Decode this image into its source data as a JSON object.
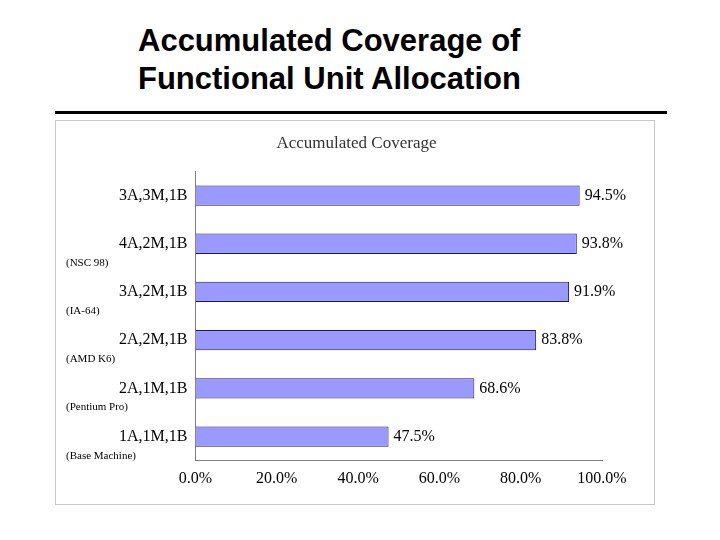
{
  "slide_title": "Accumulated Coverage of Functional Unit Allocation",
  "chart_data": {
    "type": "bar",
    "orientation": "horizontal",
    "title": "Accumulated Coverage",
    "categories": [
      "3A,3M,1B",
      "4A,2M,1B",
      "3A,2M,1B",
      "2A,2M,1B",
      "2A,1M,1B",
      "1A,1M,1B"
    ],
    "values": [
      94.5,
      93.8,
      91.9,
      83.8,
      68.6,
      47.5
    ],
    "value_labels": [
      "94.5%",
      "93.8%",
      "91.9%",
      "83.8%",
      "68.6%",
      "47.5%"
    ],
    "data_labels": true,
    "color": "#9999ff",
    "xlim": [
      0,
      100
    ],
    "xticks": [
      {
        "value": 0,
        "label": "0.0%"
      },
      {
        "value": 20,
        "label": "20.0%"
      },
      {
        "value": 40,
        "label": "40.0%"
      },
      {
        "value": 60,
        "label": "60.0%"
      },
      {
        "value": 80,
        "label": "80.0%"
      },
      {
        "value": 100,
        "label": "100.0%"
      }
    ],
    "grid": false,
    "annotations": [
      {
        "category": "4A,2M,1B",
        "text": "(NSC 98)"
      },
      {
        "category": "3A,2M,1B",
        "text": "(IA-64)"
      },
      {
        "category": "2A,2M,1B",
        "text": "(AMD K6)"
      },
      {
        "category": "2A,1M,1B",
        "text": "(Pentium Pro)"
      },
      {
        "category": "1A,1M,1B",
        "text": "(Base Machine)"
      }
    ]
  }
}
